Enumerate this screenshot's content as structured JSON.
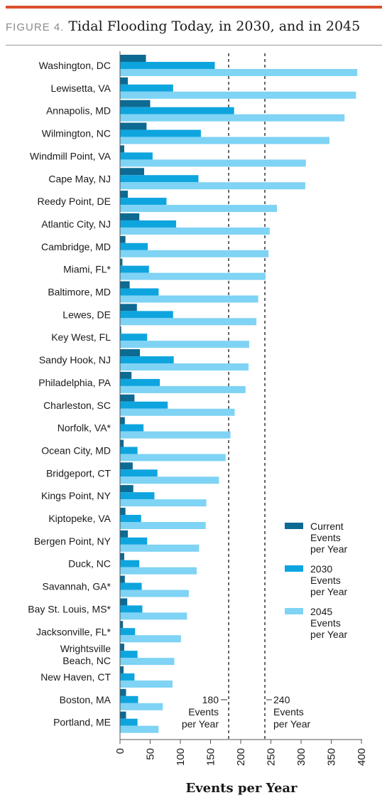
{
  "figure": {
    "label": "FIGURE 4.",
    "title": "Tidal Flooding Today, in 2030, and in 2045"
  },
  "colors": {
    "accent_rule": "#d9512c",
    "current": "#0d6a92",
    "y2030": "#0ea5df",
    "y2045": "#7fd3f4",
    "reference_line": "#666666"
  },
  "chart_data": {
    "type": "bar",
    "orientation": "horizontal",
    "xlabel": "Events per Year",
    "xlim": [
      0,
      400
    ],
    "xticks": [
      "0",
      "50",
      "100",
      "150",
      "200",
      "250",
      "300",
      "350",
      "400"
    ],
    "grid": false,
    "legend_position": "right",
    "categories": [
      "Washington, DC",
      "Lewisetta, VA",
      "Annapolis, MD",
      "Wilmington, NC",
      "Windmill Point, VA",
      "Cape May, NJ",
      "Reedy Point, DE",
      "Atlantic City, NJ",
      "Cambridge, MD",
      "Miami, FL*",
      "Baltimore, MD",
      "Lewes, DE",
      "Key West, FL",
      "Sandy Hook, NJ",
      "Philadelphia, PA",
      "Charleston, SC",
      "Norfolk, VA*",
      "Ocean City, MD",
      "Bridgeport, CT",
      "Kings Point, NY",
      "Kiptopeke, VA",
      "Bergen Point, NY",
      "Duck, NC",
      "Savannah, GA*",
      "Bay St. Louis, MS*",
      "Jacksonville, FL*",
      "Wrightsville Beach, NC",
      "New Haven, CT",
      "Boston, MA",
      "Portland, ME"
    ],
    "series": [
      {
        "name": "Current Events per Year",
        "legend_lines": [
          "Current",
          "Events",
          "per Year"
        ],
        "values": [
          43,
          13,
          50,
          44,
          7,
          40,
          13,
          32,
          9,
          4,
          16,
          28,
          2,
          33,
          19,
          24,
          8,
          6,
          21,
          22,
          9,
          13,
          7,
          8,
          12,
          5,
          7,
          6,
          10,
          10
        ]
      },
      {
        "name": "2030 Events per Year",
        "legend_lines": [
          "2030",
          "Events",
          "per Year"
        ],
        "values": [
          157,
          88,
          189,
          134,
          54,
          130,
          77,
          93,
          46,
          48,
          64,
          88,
          45,
          89,
          66,
          79,
          39,
          29,
          62,
          57,
          35,
          45,
          32,
          36,
          37,
          25,
          29,
          24,
          30,
          29
        ]
      },
      {
        "name": "2045 Events per Year",
        "legend_lines": [
          "2045",
          "Events",
          "per Year"
        ],
        "values": [
          393,
          391,
          372,
          347,
          308,
          307,
          260,
          248,
          246,
          241,
          229,
          226,
          214,
          213,
          208,
          190,
          183,
          175,
          164,
          143,
          142,
          131,
          127,
          114,
          111,
          101,
          90,
          87,
          71,
          64
        ]
      }
    ],
    "reference_lines": [
      {
        "value": 180,
        "label_lines": [
          "180",
          "Events",
          "per Year"
        ]
      },
      {
        "value": 240,
        "label_lines": [
          "240",
          "Events",
          "per Year"
        ]
      }
    ]
  }
}
